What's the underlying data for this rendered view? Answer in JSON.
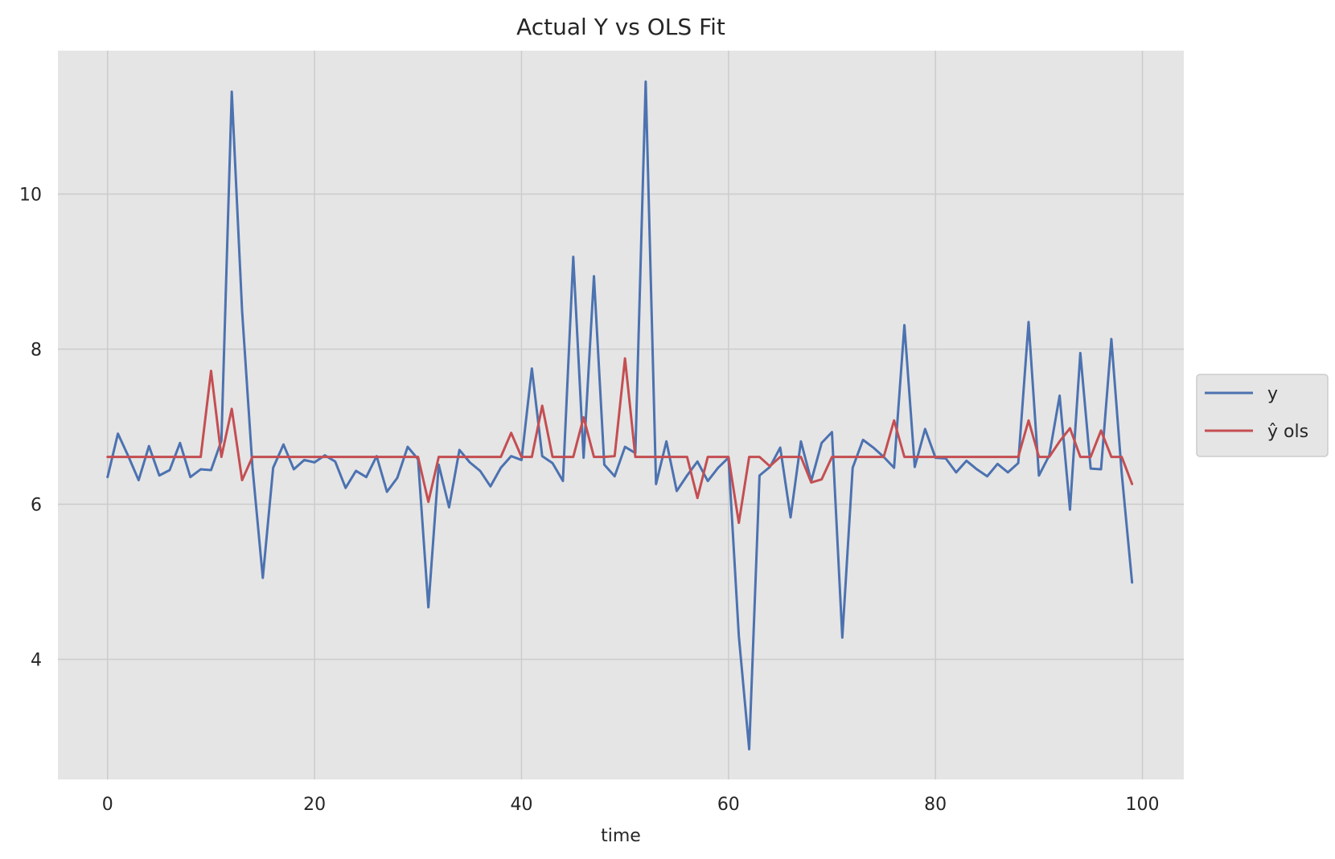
{
  "chart_data": {
    "type": "line",
    "title": "Actual Y vs OLS Fit",
    "xlabel": "time",
    "ylabel": "",
    "xlim": [
      -4.8,
      104
    ],
    "ylim": [
      2.45,
      11.85
    ],
    "xticks": [
      0,
      20,
      40,
      60,
      80,
      100
    ],
    "yticks": [
      4,
      6,
      8,
      10
    ],
    "grid": true,
    "legend_position": "center-right outside",
    "series": [
      {
        "name": "y",
        "color": "#4c72b0",
        "x": [
          0,
          1,
          2,
          3,
          4,
          5,
          6,
          7,
          8,
          9,
          10,
          11,
          12,
          13,
          14,
          15,
          16,
          17,
          18,
          19,
          20,
          21,
          22,
          23,
          24,
          25,
          26,
          27,
          28,
          29,
          30,
          31,
          32,
          33,
          34,
          35,
          36,
          37,
          38,
          39,
          40,
          41,
          42,
          43,
          44,
          45,
          46,
          47,
          48,
          49,
          50,
          51,
          52,
          53,
          54,
          55,
          56,
          57,
          58,
          59,
          60,
          61,
          62,
          63,
          64,
          65,
          66,
          67,
          68,
          69,
          70,
          71,
          72,
          73,
          74,
          75,
          76,
          77,
          78,
          79,
          80,
          81,
          82,
          83,
          84,
          85,
          86,
          87,
          88,
          89,
          90,
          91,
          92,
          93,
          94,
          95,
          96,
          97,
          98,
          99
        ],
        "values": [
          6.35,
          6.91,
          6.62,
          6.31,
          6.75,
          6.37,
          6.44,
          6.79,
          6.35,
          6.45,
          6.44,
          6.82,
          11.32,
          8.49,
          6.48,
          5.05,
          6.47,
          6.77,
          6.45,
          6.57,
          6.54,
          6.63,
          6.55,
          6.21,
          6.43,
          6.35,
          6.62,
          6.16,
          6.34,
          6.74,
          6.58,
          4.67,
          6.51,
          5.96,
          6.7,
          6.54,
          6.43,
          6.23,
          6.47,
          6.62,
          6.57,
          7.75,
          6.62,
          6.53,
          6.3,
          9.19,
          6.6,
          8.94,
          6.51,
          6.36,
          6.74,
          6.66,
          11.45,
          6.26,
          6.81,
          6.17,
          6.37,
          6.55,
          6.3,
          6.47,
          6.6,
          4.3,
          2.84,
          6.37,
          6.48,
          6.73,
          5.83,
          6.81,
          6.3,
          6.79,
          6.93,
          4.28,
          6.47,
          6.83,
          6.73,
          6.61,
          6.47,
          8.31,
          6.48,
          6.97,
          6.6,
          6.59,
          6.41,
          6.56,
          6.45,
          6.36,
          6.52,
          6.41,
          6.53,
          8.35,
          6.37,
          6.63,
          7.4,
          5.93,
          7.95,
          6.46,
          6.45,
          8.13,
          6.4,
          4.99
        ]
      },
      {
        "name": "ŷ ols",
        "color": "#c44e52",
        "x": [
          0,
          1,
          2,
          3,
          4,
          5,
          6,
          7,
          8,
          9,
          10,
          11,
          12,
          13,
          14,
          15,
          16,
          17,
          18,
          19,
          20,
          21,
          22,
          23,
          24,
          25,
          26,
          27,
          28,
          29,
          30,
          31,
          32,
          33,
          34,
          35,
          36,
          37,
          38,
          39,
          40,
          41,
          42,
          43,
          44,
          45,
          46,
          47,
          48,
          49,
          50,
          51,
          52,
          53,
          54,
          55,
          56,
          57,
          58,
          59,
          60,
          61,
          62,
          63,
          64,
          65,
          66,
          67,
          68,
          69,
          70,
          71,
          72,
          73,
          74,
          75,
          76,
          77,
          78,
          79,
          80,
          81,
          82,
          83,
          84,
          85,
          86,
          87,
          88,
          89,
          90,
          91,
          92,
          93,
          94,
          95,
          96,
          97,
          98,
          99
        ],
        "values": [
          6.61,
          6.61,
          6.61,
          6.61,
          6.61,
          6.61,
          6.61,
          6.61,
          6.61,
          6.61,
          7.72,
          6.61,
          7.23,
          6.31,
          6.61,
          6.61,
          6.61,
          6.61,
          6.61,
          6.61,
          6.61,
          6.61,
          6.61,
          6.61,
          6.61,
          6.61,
          6.61,
          6.61,
          6.61,
          6.61,
          6.61,
          6.03,
          6.61,
          6.61,
          6.61,
          6.61,
          6.61,
          6.61,
          6.61,
          6.92,
          6.61,
          6.61,
          7.27,
          6.61,
          6.61,
          6.61,
          7.12,
          6.61,
          6.61,
          6.62,
          7.88,
          6.61,
          6.61,
          6.61,
          6.61,
          6.61,
          6.61,
          6.08,
          6.61,
          6.61,
          6.61,
          5.76,
          6.61,
          6.61,
          6.49,
          6.61,
          6.61,
          6.61,
          6.28,
          6.32,
          6.61,
          6.61,
          6.61,
          6.61,
          6.61,
          6.61,
          7.08,
          6.61,
          6.61,
          6.61,
          6.61,
          6.61,
          6.61,
          6.61,
          6.61,
          6.61,
          6.61,
          6.61,
          6.61,
          7.08,
          6.61,
          6.61,
          6.81,
          6.98,
          6.61,
          6.61,
          6.95,
          6.61,
          6.61,
          6.26
        ]
      }
    ]
  },
  "colors": {
    "plot_background": "#e5e5e5",
    "grid": "#cccccc"
  }
}
